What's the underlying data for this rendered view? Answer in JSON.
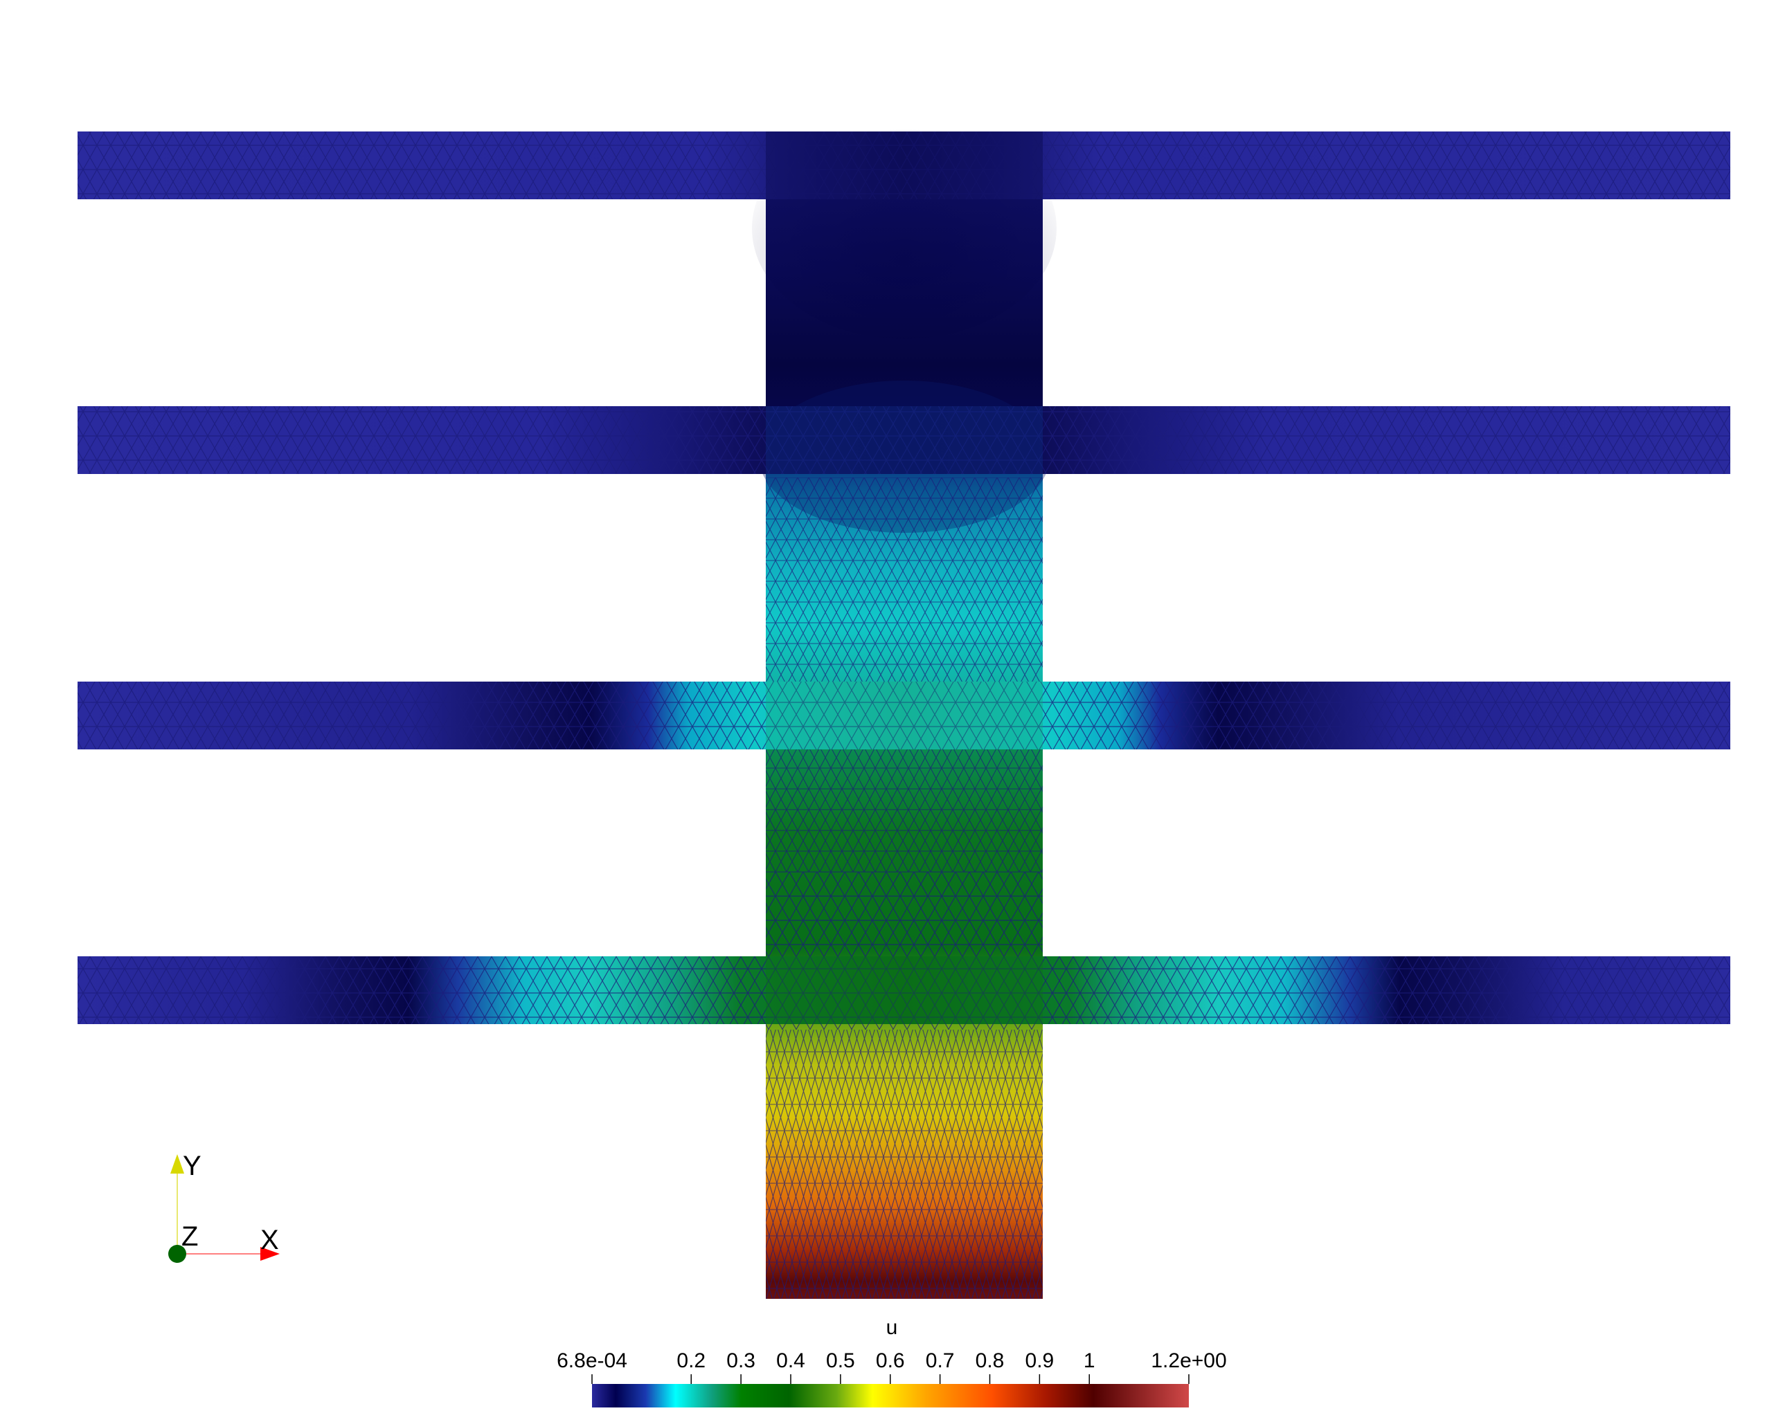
{
  "scalar_bar": {
    "title": "u",
    "min_label": "6.8e-04",
    "max_label": "1.2e+00",
    "ticks": [
      {
        "value": 0.2,
        "label": "0.2"
      },
      {
        "value": 0.3,
        "label": "0.3"
      },
      {
        "value": 0.4,
        "label": "0.4"
      },
      {
        "value": 0.5,
        "label": "0.5"
      },
      {
        "value": 0.6,
        "label": "0.6"
      },
      {
        "value": 0.7,
        "label": "0.7"
      },
      {
        "value": 0.8,
        "label": "0.8"
      },
      {
        "value": 0.9,
        "label": "0.9"
      },
      {
        "value": 1.0,
        "label": "1"
      }
    ],
    "range": [
      0.00068,
      1.2
    ],
    "colormap": [
      "#1e1e8c",
      "#000050",
      "#00ffff",
      "#008000",
      "#006400",
      "#ffff00",
      "#ff8c00",
      "#ff4500",
      "#500000",
      "#d04040"
    ]
  },
  "axes": {
    "y_label": "Y",
    "z_label": "Z",
    "x_label": "X",
    "x_color": "#ff0000",
    "y_color": "#d8d800",
    "z_color": "#006400"
  },
  "mesh": {
    "edge_color": "#1a1a7a",
    "background": "#ffffff"
  }
}
